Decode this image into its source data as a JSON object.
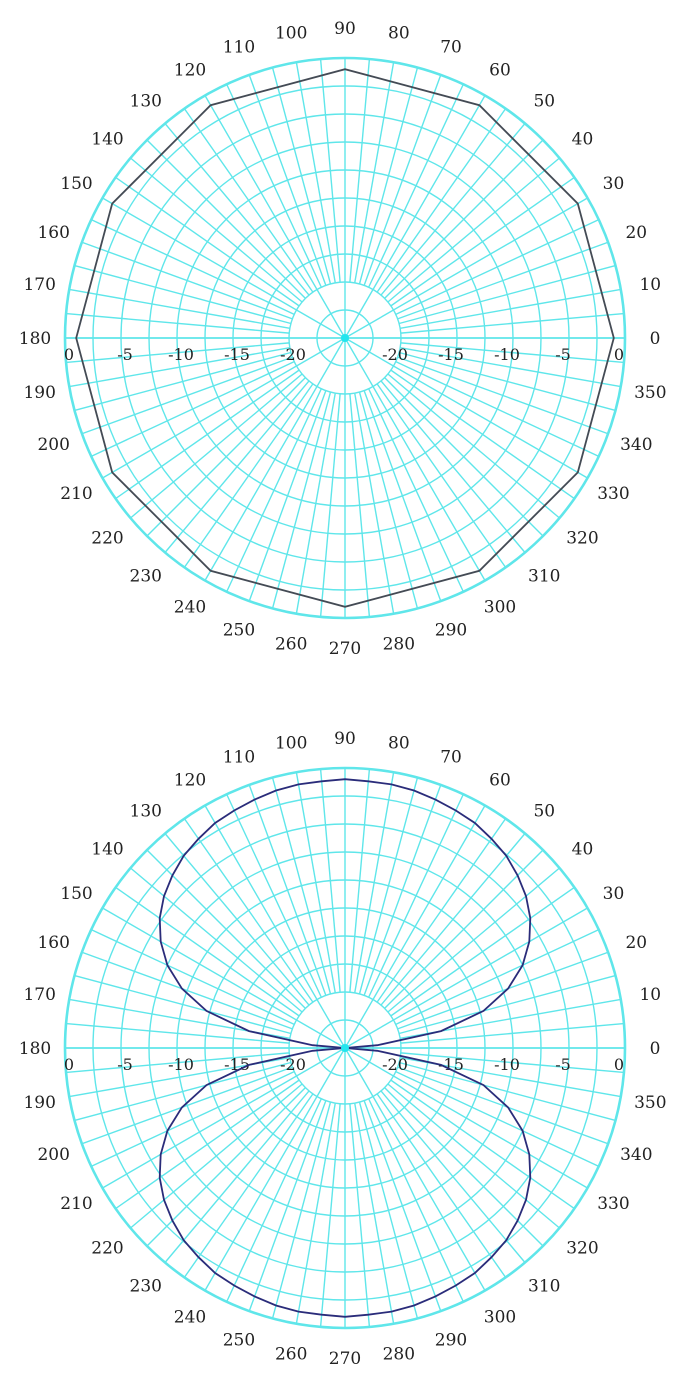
{
  "colors": {
    "grid": "#5fe6ea",
    "text": "#222222",
    "trace_top": "#444b55",
    "trace_bottom": "#2a2c7a",
    "center": "#22e5ee"
  },
  "chart_data": [
    {
      "type": "polar-line",
      "title": "",
      "angle_unit": "degrees",
      "angle_labels": [
        "0",
        "10",
        "20",
        "30",
        "40",
        "50",
        "60",
        "70",
        "80",
        "90",
        "100",
        "110",
        "120",
        "130",
        "140",
        "150",
        "160",
        "170",
        "180",
        "190",
        "200",
        "210",
        "220",
        "230",
        "240",
        "250",
        "260",
        "270",
        "280",
        "290",
        "300",
        "310",
        "320",
        "330",
        "340",
        "350"
      ],
      "radial_labels": [
        "0",
        "-5",
        "-10",
        "-15",
        "-20"
      ],
      "radial_range": [
        -25,
        0
      ],
      "radial_unit": "dB",
      "grid": true,
      "series": [
        {
          "color": "#444b55",
          "angles": [
            0,
            30,
            60,
            90,
            120,
            150,
            180,
            210,
            240,
            270,
            300,
            330,
            360
          ],
          "values": [
            -1,
            -1,
            -1,
            -1,
            -1,
            -1,
            -1,
            -1,
            -1,
            -1,
            -1,
            -1,
            -1
          ]
        }
      ]
    },
    {
      "type": "polar-line",
      "title": "",
      "angle_unit": "degrees",
      "angle_labels": [
        "0",
        "10",
        "20",
        "30",
        "40",
        "50",
        "60",
        "70",
        "80",
        "90",
        "100",
        "110",
        "120",
        "130",
        "140",
        "150",
        "160",
        "170",
        "180",
        "190",
        "200",
        "210",
        "220",
        "230",
        "240",
        "250",
        "260",
        "270",
        "280",
        "290",
        "300",
        "310",
        "320",
        "330",
        "340",
        "350"
      ],
      "radial_labels": [
        "0",
        "-5",
        "-10",
        "-15",
        "-20"
      ],
      "radial_range": [
        -25,
        0
      ],
      "radial_unit": "dB",
      "grid": true,
      "series": [
        {
          "color": "#2a2c7a",
          "angles": [
            0,
            5,
            10,
            15,
            20,
            25,
            30,
            35,
            40,
            45,
            50,
            55,
            60,
            65,
            70,
            75,
            80,
            85,
            90,
            95,
            100,
            105,
            110,
            115,
            120,
            125,
            130,
            135,
            140,
            145,
            150,
            155,
            160,
            165,
            170,
            175,
            180,
            185,
            190,
            195,
            200,
            205,
            210,
            215,
            220,
            225,
            230,
            235,
            240,
            245,
            250,
            255,
            260,
            265,
            270,
            275,
            280,
            285,
            290,
            295,
            300,
            305,
            310,
            315,
            320,
            325,
            330,
            335,
            340,
            345,
            350,
            355,
            360
          ],
          "values": [
            -25,
            -22.1,
            -16.3,
            -12.2,
            -9.5,
            -7.5,
            -6.0,
            -4.8,
            -3.9,
            -3.2,
            -2.6,
            -2.2,
            -1.8,
            -1.6,
            -1.4,
            -1.2,
            -1.1,
            -1.1,
            -1.0,
            -1.1,
            -1.1,
            -1.2,
            -1.4,
            -1.6,
            -1.8,
            -2.2,
            -2.6,
            -3.2,
            -3.9,
            -4.8,
            -6.0,
            -7.5,
            -9.5,
            -12.2,
            -16.3,
            -22.1,
            -25,
            -22.1,
            -16.3,
            -12.2,
            -9.5,
            -7.5,
            -6.0,
            -4.8,
            -3.9,
            -3.2,
            -2.6,
            -2.2,
            -1.8,
            -1.6,
            -1.4,
            -1.2,
            -1.1,
            -1.1,
            -1.0,
            -1.1,
            -1.1,
            -1.2,
            -1.4,
            -1.6,
            -1.8,
            -2.2,
            -2.6,
            -3.2,
            -3.9,
            -4.8,
            -6.0,
            -7.5,
            -9.5,
            -12.2,
            -16.3,
            -22.1,
            -25
          ]
        }
      ]
    }
  ]
}
